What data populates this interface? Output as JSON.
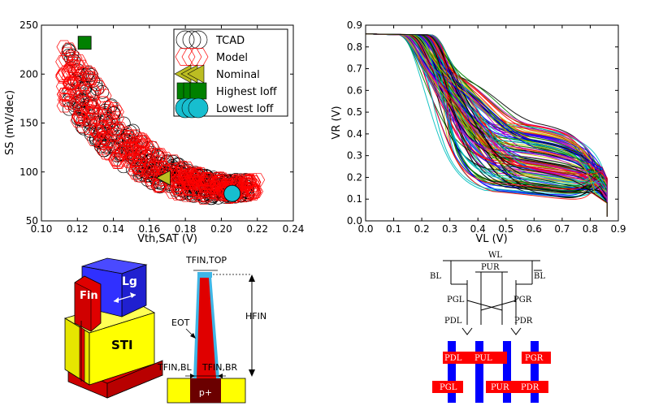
{
  "chart_data": [
    {
      "type": "scatter",
      "xlabel": "Vth,SAT (V)",
      "ylabel": "SS (mV/dec)",
      "xlim": [
        0.1,
        0.24
      ],
      "ylim": [
        50,
        250
      ],
      "xticks": [
        "0.10",
        "0.12",
        "0.14",
        "0.16",
        "0.18",
        "0.20",
        "0.22",
        "0.24"
      ],
      "yticks": [
        "50",
        "100",
        "150",
        "200",
        "250"
      ],
      "legend_position": "top-right",
      "legend": [
        {
          "name": "TCAD",
          "marker": "circle-open",
          "color": "#000000"
        },
        {
          "name": "Model",
          "marker": "hexagon-open",
          "color": "#ff0000"
        },
        {
          "name": "Nominal",
          "marker": "triangle-left",
          "color": "#bcbd22"
        },
        {
          "name": "Highest Ioff",
          "marker": "square",
          "color": "#008000"
        },
        {
          "name": "Lowest Ioff",
          "marker": "circle",
          "color": "#17becf"
        }
      ],
      "cloud_trend": {
        "x": [
          0.115,
          0.125,
          0.135,
          0.145,
          0.155,
          0.165,
          0.175,
          0.185,
          0.195,
          0.205,
          0.215
        ],
        "y_low": [
          165,
          140,
          120,
          105,
          95,
          85,
          78,
          74,
          73,
          74,
          76
        ],
        "y_high": [
          230,
          210,
          180,
          155,
          135,
          120,
          110,
          100,
          95,
          92,
          92
        ]
      },
      "highlights": [
        {
          "name": "Nominal",
          "x": 0.168,
          "y": 94
        },
        {
          "name": "Highest Ioff",
          "x": 0.124,
          "y": 232
        },
        {
          "name": "Lowest Ioff",
          "x": 0.206,
          "y": 78
        }
      ]
    },
    {
      "type": "line",
      "xlabel": "VL (V)",
      "ylabel": "VR (V)",
      "xlim": [
        0.0,
        0.9
      ],
      "ylim": [
        0.0,
        0.9
      ],
      "xticks": [
        "0.0",
        "0.1",
        "0.2",
        "0.3",
        "0.4",
        "0.5",
        "0.6",
        "0.7",
        "0.8",
        "0.9"
      ],
      "yticks": [
        "0.0",
        "0.1",
        "0.2",
        "0.3",
        "0.4",
        "0.5",
        "0.6",
        "0.7",
        "0.8",
        "0.9"
      ],
      "series_description": "Monte Carlo butterfly transfer curves, hundreds of colored traces",
      "vdd": 0.86,
      "transition_x_range": [
        0.14,
        0.52
      ],
      "plateau_y_range": [
        0.13,
        0.45
      ],
      "series_colors": [
        "#0000ff",
        "#008000",
        "#ff0000",
        "#00bfbf",
        "#bf00bf",
        "#bfbf00",
        "#000000"
      ]
    }
  ],
  "device": {
    "fin_label": "Fin",
    "lg_label": "Lg",
    "sti_label": "STI"
  },
  "cross_section": {
    "tfin_top": "TFIN,TOP",
    "hfin": "HFIN",
    "eot": "EOT",
    "tfin_bl": "TFIN,BL",
    "tfin_br": "TFIN,BR",
    "substrate": "p+"
  },
  "sram": {
    "wl": "WL",
    "bl": "BL",
    "blb": "BL",
    "pgl": "PGL",
    "pgr": "PGR",
    "pul": "PUL",
    "pur": "PUR",
    "pdl": "PDL",
    "pdr": "PDR"
  },
  "layout": {
    "pdl": "PDL",
    "pul": "PUL",
    "pgr": "PGR",
    "pgl": "PGL",
    "pur": "PUR",
    "pdr": "PDR"
  }
}
